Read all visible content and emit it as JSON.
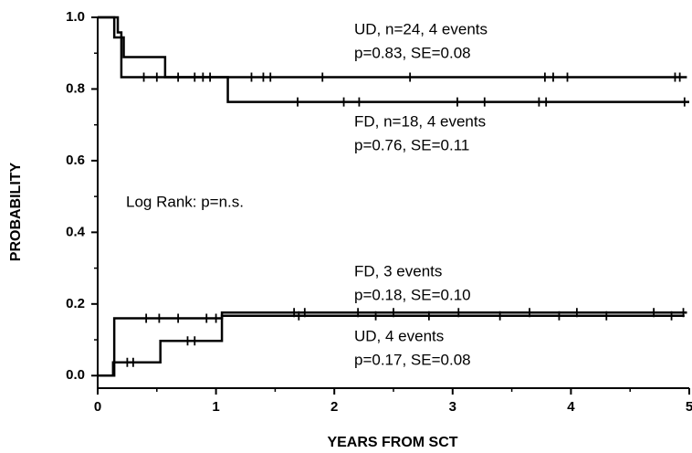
{
  "chart_data": {
    "type": "step",
    "xlabel": "YEARS FROM SCT",
    "ylabel": "PROBABILITY",
    "xlim": [
      0,
      5
    ],
    "ylim": [
      -0.035,
      1
    ],
    "xticks": [
      0,
      1,
      2,
      3,
      4,
      5
    ],
    "yticks": [
      {
        "value": 0,
        "label": "0.0"
      },
      0.2,
      0.4,
      0.6,
      0.8,
      {
        "value": 1,
        "label": "1.0"
      }
    ],
    "x_minor_ticks": [
      0.5,
      1.5,
      2.5,
      3.5,
      4.5
    ],
    "y_minor_ticks": [
      0.1,
      0.3,
      0.5,
      0.7,
      0.9
    ],
    "color": "#000000",
    "series": [
      {
        "x": [
          0,
          0.17,
          0.2,
          4.98
        ],
        "y": [
          1,
          0.958,
          0.833,
          0.833
        ],
        "censored": [
          0.39,
          0.5,
          1.3,
          1.4,
          1.46,
          1.9,
          2.64,
          3.78,
          3.85,
          3.97,
          4.88,
          4.92
        ]
      },
      {
        "x": [
          0,
          0.14,
          0.22,
          0.57,
          1.1,
          5
        ],
        "y": [
          1,
          0.944,
          0.889,
          0.833,
          0.764,
          0.764
        ],
        "censored": [
          0.68,
          0.82,
          0.89,
          0.95,
          1.69,
          2.08,
          2.21,
          3.04,
          3.27,
          3.73,
          3.79,
          4.96
        ]
      },
      {
        "x": [
          0,
          0.13,
          0.53,
          1.05,
          4.98
        ],
        "y": [
          0,
          0.037,
          0.097,
          0.176,
          0.176
        ],
        "censored": [
          0.25,
          0.3,
          0.76,
          0.82,
          1.66,
          1.75,
          2.2,
          2.5,
          3.05,
          3.65,
          4.05,
          4.7,
          4.95
        ]
      },
      {
        "x": [
          0,
          0.14,
          1.05,
          4.96
        ],
        "y": [
          0,
          0.16,
          0.167,
          0.167
        ],
        "censored": [
          0.41,
          0.52,
          0.68,
          0.92,
          1.0,
          1.7,
          2.35,
          2.8,
          3.4,
          3.9,
          4.3,
          4.85
        ]
      }
    ],
    "annotations": [
      "UD, n=24, 4 events",
      "p=0.83, SE=0.08",
      "FD, n=18, 4 events",
      "p=0.76, SE=0.11",
      "Log Rank: p=n.s.",
      "FD, 3 events",
      "p=0.18, SE=0.10",
      "UD, 4 events",
      "p=0.17, SE=0.08"
    ]
  }
}
